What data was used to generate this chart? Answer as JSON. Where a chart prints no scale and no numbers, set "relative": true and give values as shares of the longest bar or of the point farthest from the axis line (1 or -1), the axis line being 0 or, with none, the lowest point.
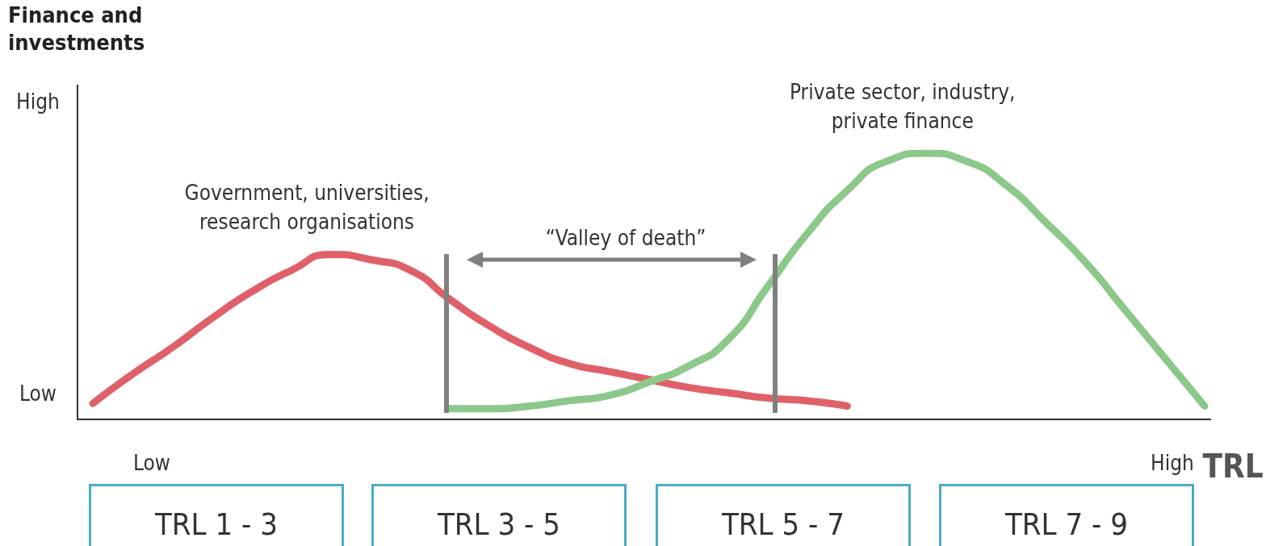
{
  "chart_data": {
    "type": "line",
    "relative": true,
    "xlabel": "TRL",
    "ylabel": "Finance and investments",
    "legend": false,
    "marker": "none",
    "line_style": "solid",
    "categories": [
      null,
      null,
      null,
      null,
      null,
      null,
      null,
      null,
      null,
      null,
      null,
      null,
      null,
      null,
      null,
      null,
      null,
      null,
      null,
      null,
      null,
      null,
      null,
      null,
      null,
      null,
      null,
      null,
      null
    ],
    "series": [
      {
        "name": "Government, universities, research organisations",
        "color": "#e0606a",
        "values": [
          0.06,
          0.17,
          0.27,
          0.38,
          0.48,
          0.56,
          0.62,
          0.6,
          0.56,
          0.45,
          0.35,
          0.27,
          0.21,
          0.18,
          0.15,
          0.12,
          0.1,
          0.08,
          0.07,
          0.05,
          null,
          null,
          null,
          null,
          null,
          null,
          null,
          null,
          null
        ]
      },
      {
        "name": "Private sector, industry, private finance",
        "color": "#8cc88a",
        "values": [
          null,
          null,
          null,
          null,
          null,
          null,
          null,
          null,
          null,
          0.04,
          0.04,
          0.05,
          0.07,
          0.09,
          0.14,
          0.2,
          0.3,
          0.5,
          0.7,
          0.86,
          0.97,
          1,
          0.97,
          0.88,
          0.74,
          0.59,
          0.41,
          0.23,
          0.05
        ]
      }
    ],
    "annotations": [
      "High",
      "Low",
      "Low",
      "High",
      "“Valley of death”",
      "TRL 1 - 3",
      "TRL 3 - 5",
      "TRL 5 - 7",
      "TRL 7 - 9"
    ]
  }
}
